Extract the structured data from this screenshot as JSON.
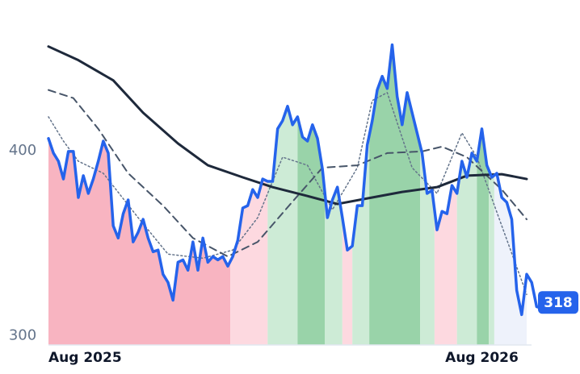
{
  "chart_data": {
    "type": "line",
    "xlim": [
      0,
      96
    ],
    "ylim": [
      295,
      464
    ],
    "yticks": [
      300,
      400
    ],
    "xticks": [
      {
        "value": 0,
        "label": "Aug 2025"
      },
      {
        "value": 87,
        "label": "Aug 2026"
      }
    ],
    "series": [
      {
        "color": "#2563eb",
        "style": "solid",
        "width": 3.5,
        "values": [
          406.6,
          398.7,
          394.3,
          384.7,
          399.6,
          399.6,
          374.7,
          386.5,
          376.9,
          384.7,
          394.3,
          405.2,
          398.7,
          359.4,
          352.8,
          365.9,
          373.4,
          350.7,
          355.9,
          362.9,
          352.8,
          345.4,
          346.3,
          333.2,
          328.8,
          319.2,
          339.7,
          341.0,
          335.4,
          350.7,
          335.4,
          352.8,
          339.7,
          342.8,
          341.0,
          342.8,
          337.6,
          342.8,
          351.5,
          369.0,
          370.3,
          379.0,
          374.7,
          384.7,
          383.4,
          383.4,
          411.8,
          416.2,
          424.0,
          414.0,
          418.3,
          407.4,
          405.2,
          414.0,
          406.6,
          390.0,
          363.8,
          373.4,
          380.3,
          363.8,
          346.3,
          348.5,
          370.3,
          370.3,
          403.1,
          416.2,
          432.8,
          440.2,
          433.6,
          457.2,
          429.3,
          414.0,
          431.4,
          420.5,
          409.6,
          398.7,
          376.9,
          378.6,
          357.2,
          367.2,
          365.9,
          381.2,
          376.9,
          394.3,
          385.6,
          398.7,
          394.3,
          411.8,
          392.1,
          385.6,
          387.8,
          374.7,
          372.1,
          362.9,
          324.5,
          311.4,
          333.2,
          328.8,
          315.7,
          314.8,
          315.7,
          318
        ]
      },
      {
        "color": "#1e293b",
        "style": "solid",
        "width": 3,
        "x": [
          0,
          6,
          13,
          19,
          26,
          32,
          39,
          45,
          52,
          58,
          65,
          71,
          78,
          84,
          91,
          96
        ],
        "values": [
          456.3,
          448.9,
          438.0,
          420.5,
          403.9,
          392.1,
          385.6,
          380.3,
          375.5,
          371.2,
          374.7,
          377.7,
          380.3,
          386.5,
          387.3,
          384.7
        ]
      },
      {
        "color": "#475569",
        "style": "dashed",
        "width": 2,
        "x": [
          0,
          5,
          10,
          16,
          23,
          29,
          36,
          42,
          49,
          55,
          62,
          68,
          75,
          79,
          84,
          91,
          96
        ],
        "values": [
          432.8,
          428.4,
          411.8,
          387.8,
          370.3,
          352.8,
          342.8,
          350.7,
          372.5,
          390.8,
          392.1,
          398.7,
          399.6,
          402.2,
          396.5,
          379.0,
          362.9
        ]
      },
      {
        "color": "#64748b",
        "style": "dotted",
        "width": 1.5,
        "x": [
          0,
          3,
          6,
          11,
          18,
          24,
          31,
          37,
          42,
          47,
          52,
          57,
          62,
          65,
          68,
          73,
          78,
          83,
          86,
          91,
          96
        ],
        "values": [
          418.3,
          405.2,
          394.3,
          387.8,
          363.8,
          344.1,
          341.9,
          346.3,
          363.8,
          396.5,
          392.1,
          368.1,
          390.8,
          427.1,
          431.4,
          390.8,
          376.9,
          409.6,
          396.5,
          359.4,
          322.3
        ]
      }
    ],
    "bands": [
      {
        "start": 0,
        "end": 36.5,
        "color": "#f8b4c1"
      },
      {
        "start": 36.5,
        "end": 44,
        "color": "#fdd9e0"
      },
      {
        "start": 44,
        "end": 50,
        "color": "#cdebd6"
      },
      {
        "start": 50,
        "end": 55.5,
        "color": "#99d3a9"
      },
      {
        "start": 55.5,
        "end": 59,
        "color": "#cdebd6"
      },
      {
        "start": 59,
        "end": 61,
        "color": "#fdd9e0"
      },
      {
        "start": 61,
        "end": 64.4,
        "color": "#cdebd6"
      },
      {
        "start": 64.4,
        "end": 74.6,
        "color": "#99d3a9"
      },
      {
        "start": 74.6,
        "end": 77.5,
        "color": "#cdebd6"
      },
      {
        "start": 77.5,
        "end": 82,
        "color": "#fdd9e0"
      },
      {
        "start": 82,
        "end": 86,
        "color": "#cdebd6"
      },
      {
        "start": 86,
        "end": 88.4,
        "color": "#99d3a9"
      },
      {
        "start": 88.4,
        "end": 89.5,
        "color": "#cdebd6"
      },
      {
        "start": 89.5,
        "end": 96,
        "color": "#eef2fb"
      }
    ]
  }
}
